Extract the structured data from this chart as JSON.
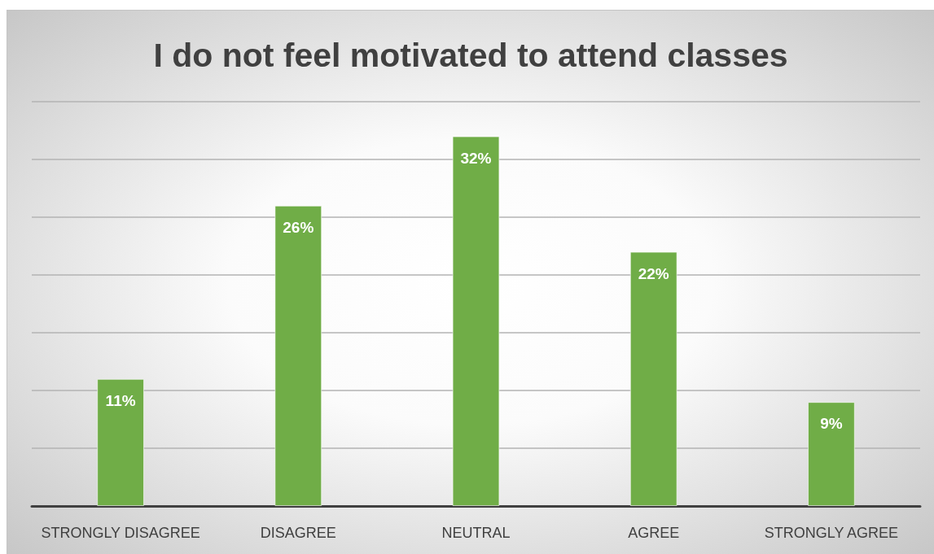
{
  "chart_data": {
    "type": "bar",
    "title": "I do not feel motivated to attend classes",
    "categories": [
      "STRONGLY DISAGREE",
      "DISAGREE",
      "NEUTRAL",
      "AGREE",
      "STRONGLY AGREE"
    ],
    "values": [
      11,
      26,
      32,
      22,
      9
    ],
    "color": "#70ad47",
    "value_labels": [
      "11%",
      "26%",
      "32%",
      "22%",
      "9%"
    ],
    "ylim": [
      0,
      35
    ],
    "yticks": [
      {
        "value": 0,
        "label": null
      },
      {
        "value": 5,
        "label": null
      },
      {
        "value": 10,
        "label": null
      },
      {
        "value": 15,
        "label": null
      },
      {
        "value": 20,
        "label": null
      },
      {
        "value": 25,
        "label": null
      },
      {
        "value": 30,
        "label": null
      },
      {
        "value": 35,
        "label": null
      }
    ],
    "grid": "y",
    "tick_labels": "x"
  }
}
